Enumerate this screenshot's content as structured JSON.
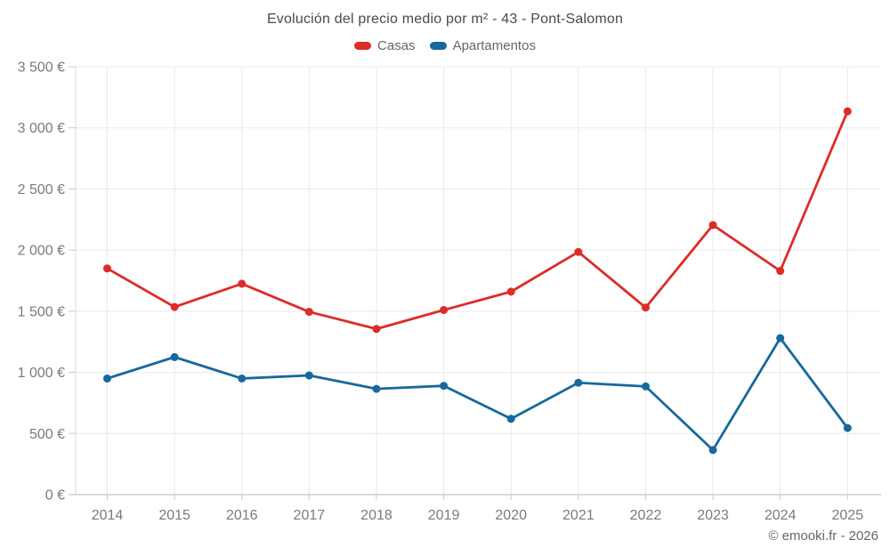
{
  "header": {
    "title": "Evolución del precio medio por m² - 43 - Pont-Salomon"
  },
  "legend": {
    "items": [
      {
        "label": "Casas",
        "color": "#dd2c28"
      },
      {
        "label": "Apartamentos",
        "color": "#17689d"
      }
    ]
  },
  "footer": {
    "credit": "© emooki.fr - 2026"
  },
  "colors": {
    "casas_line": "#dd2c28",
    "apartamentos_line": "#17689d",
    "grid_line": "#e9e9e9",
    "axis_line": "#b6b6b6",
    "tick_line": "#c9c9c9",
    "plot_border": "#d9d9d9",
    "axis_text": "#7a7a7a",
    "title_text": "#4a4a4a",
    "background": "#ffffff"
  },
  "chart_data": {
    "type": "line",
    "title": "Evolución del precio medio por m² - 43 - Pont-Salomon",
    "categories": [
      "2014",
      "2015",
      "2016",
      "2017",
      "2018",
      "2019",
      "2020",
      "2021",
      "2022",
      "2023",
      "2024",
      "2025"
    ],
    "series": [
      {
        "name": "Casas",
        "color": "#dd2c28",
        "values": [
          1850,
          1535,
          1725,
          1495,
          1355,
          1510,
          1660,
          1985,
          1530,
          2205,
          1830,
          3135
        ]
      },
      {
        "name": "Apartamentos",
        "color": "#17689d",
        "values": [
          950,
          1125,
          950,
          975,
          865,
          890,
          620,
          915,
          885,
          365,
          1280,
          545
        ]
      }
    ],
    "xlabel": "",
    "ylabel": "",
    "ylim": [
      0,
      3500
    ],
    "ytick_step": 500,
    "ytick_labels": [
      "0 €",
      "500 €",
      "1 000 €",
      "1 500 €",
      "2 000 €",
      "2 500 €",
      "3 000 €",
      "3 500 €"
    ],
    "grid": true,
    "legend_position": "top-center"
  }
}
